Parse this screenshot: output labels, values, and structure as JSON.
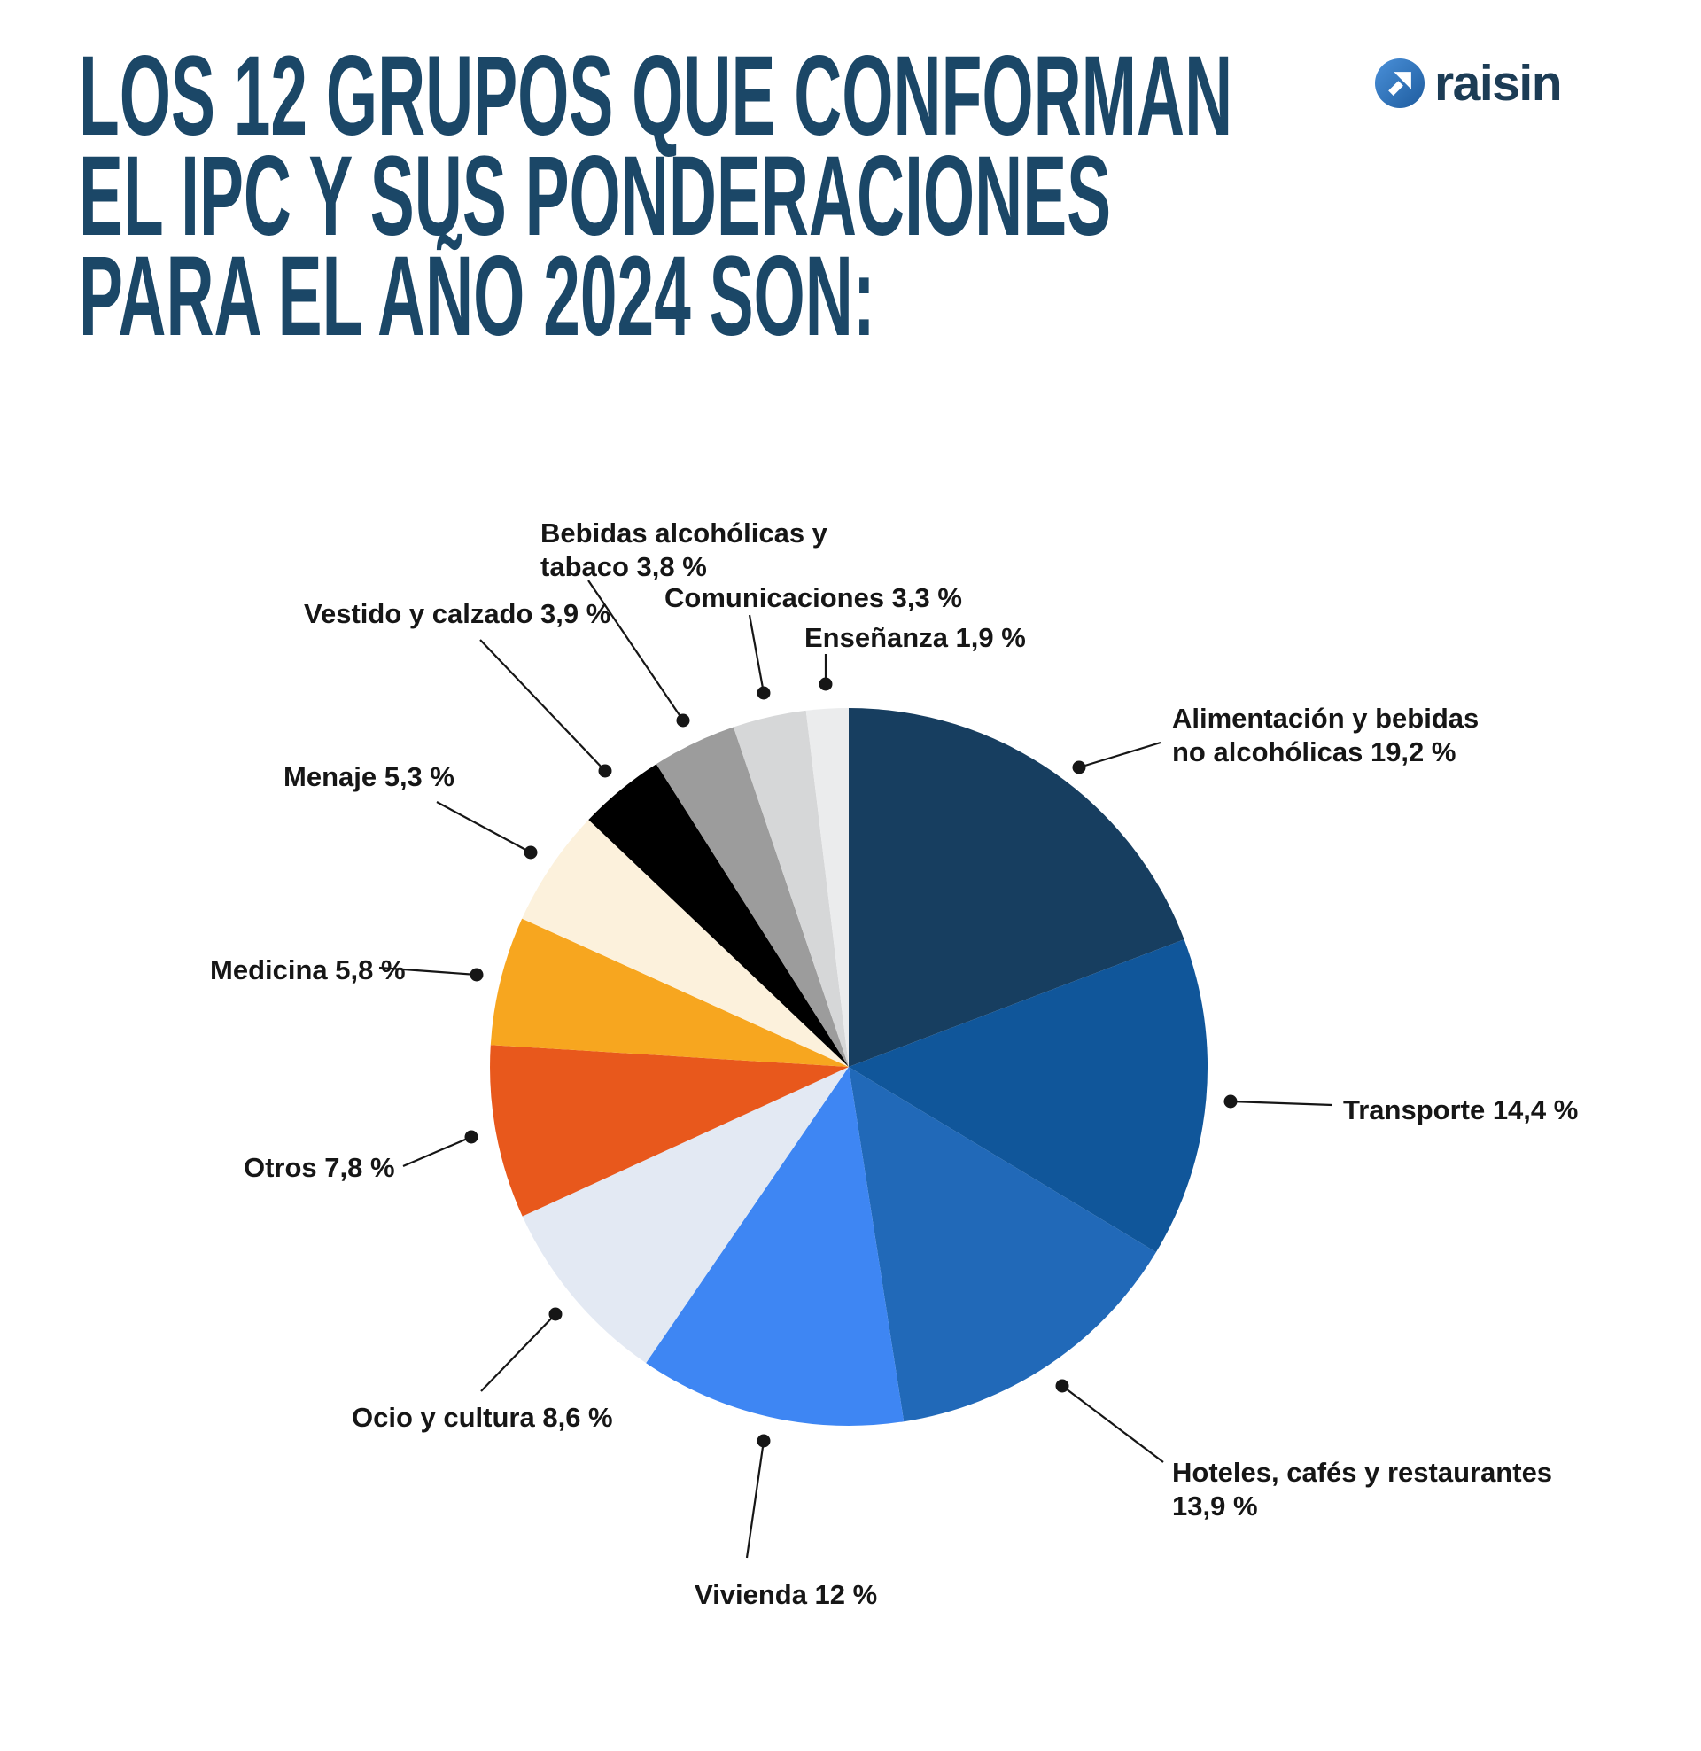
{
  "title": {
    "lines": [
      "LOS 12 GRUPOS QUE CONFORMAN",
      "EL IPC Y SUS PONDERACIONES",
      "PARA EL AÑO 2024 SON:"
    ],
    "color": "#1B4767"
  },
  "logo": {
    "text": "raisin",
    "text_color": "#1C3C55",
    "circle_gradient": [
      "#4A90D9",
      "#1E5C9E"
    ],
    "arrow_color": "#FFFFFF"
  },
  "chart_data": {
    "type": "pie",
    "title": "Los 12 grupos que conforman el IPC y sus ponderaciones para el año 2024",
    "unit": "%",
    "total": 99.9,
    "start_angle_deg": 0,
    "direction": "clockwise",
    "center": [
      958,
      1204
    ],
    "radius": 405,
    "leader_radius": 433,
    "dot_radius": 7.5,
    "line_color": "#161616",
    "label_color": "#161616",
    "background": "#FFFFFF",
    "segments": [
      {
        "label": "Alimentación y bebidas no alcohólicas",
        "value": 19.2,
        "display": "Alimentación y bebidas\nno alcohólicas 19,2 %",
        "color": "#173E60",
        "text": [
          1323,
          792
        ],
        "dot": [
          1218,
          866
        ],
        "line_to": [
          1310,
          838
        ]
      },
      {
        "label": "Transporte",
        "value": 14.4,
        "display": "Transporte 14,4 %",
        "color": "#10569A",
        "text": [
          1516,
          1234
        ],
        "line_to": [
          1504,
          1247
        ]
      },
      {
        "label": "Hoteles, cafés y restaurantes",
        "value": 13.9,
        "display": "Hoteles, cafés y restaurantes\n13,9 %",
        "color": "#2169B8",
        "text": [
          1323,
          1643
        ],
        "line_to": [
          1313,
          1650
        ]
      },
      {
        "label": "Vivienda",
        "value": 12.0,
        "display": "Vivienda 12 %",
        "color": "#3E86F3",
        "text": [
          784,
          1781
        ],
        "line_to": [
          843,
          1758
        ]
      },
      {
        "label": "Ocio y cultura",
        "value": 8.6,
        "display": "Ocio y cultura 8,6 %",
        "color": "#E3E9F3",
        "text": [
          397,
          1581
        ],
        "line_to": [
          543,
          1570
        ]
      },
      {
        "label": "Otros",
        "value": 7.8,
        "display": "Otros 7,8 %",
        "color": "#E8581C",
        "text": [
          275,
          1299
        ],
        "line_to": [
          455,
          1316
        ]
      },
      {
        "label": "Medicina",
        "value": 5.8,
        "display": "Medicina 5,8 %",
        "color": "#F7A61F",
        "text": [
          237,
          1076
        ],
        "line_to": [
          428,
          1092
        ]
      },
      {
        "label": "Menaje",
        "value": 5.3,
        "display": "Menaje 5,3 %",
        "color": "#FCF1DC",
        "text": [
          320,
          858
        ],
        "line_to": [
          493,
          905
        ]
      },
      {
        "label": "Vestido y calzado",
        "value": 3.9,
        "display": "Vestido y calzado 3,9 %",
        "color": "#000000",
        "text": [
          343,
          674
        ],
        "line_to": [
          542,
          722
        ]
      },
      {
        "label": "Bebidas alcohólicas y tabaco",
        "value": 3.8,
        "display": "Bebidas alcohólicas y\ntabaco 3,8 %",
        "color": "#9C9C9C",
        "text": [
          610,
          583
        ],
        "line_to": [
          664,
          655
        ]
      },
      {
        "label": "Comunicaciones",
        "value": 3.3,
        "display": "Comunicaciones 3,3 %",
        "color": "#D6D7D8",
        "text": [
          750,
          656
        ],
        "line_to": [
          846,
          694
        ]
      },
      {
        "label": "Enseñanza",
        "value": 1.9,
        "display": "Enseñanza 1,9 %",
        "color": "#EBECED",
        "text": [
          908,
          701
        ],
        "line_to": [
          932,
          738
        ]
      }
    ]
  }
}
